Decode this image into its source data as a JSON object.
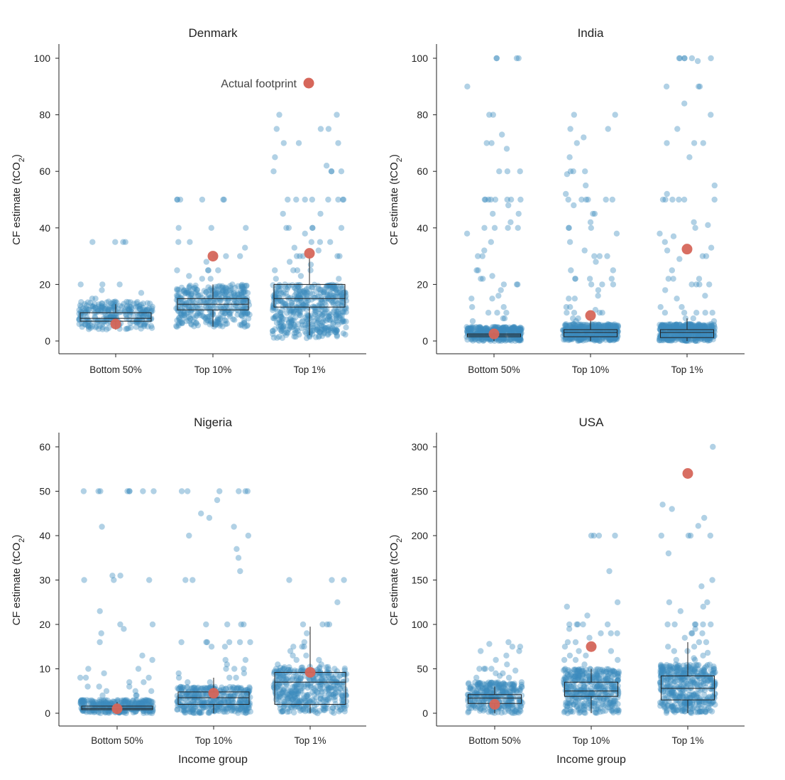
{
  "colors": {
    "point": "#3d8bbd",
    "actual": "#d6665a",
    "box": "#222222",
    "axis": "#222222"
  },
  "legend": {
    "label": "Actual footprint"
  },
  "chart_data": [
    {
      "type": "box-strip",
      "title": "Denmark",
      "ylabel_main": "CF estimate (tCO",
      "ylabel_sub": "2",
      "ylabel_close": ")",
      "xlabel": "",
      "ylim": [
        0,
        100
      ],
      "yticks": [
        0,
        20,
        40,
        60,
        80,
        100
      ],
      "categories": [
        "Bottom 50%",
        "Top 10%",
        "Top 1%"
      ],
      "actual": [
        6,
        30,
        31
      ],
      "box": [
        {
          "q1": 7,
          "median": 8,
          "q3": 10,
          "whisker_low": 4,
          "whisker_high": 13
        },
        {
          "q1": 11,
          "median": 13,
          "q3": 15,
          "whisker_low": 5,
          "whisker_high": 20
        },
        {
          "q1": 12,
          "median": 15,
          "q3": 20,
          "whisker_low": 2,
          "whisker_high": 30
        }
      ],
      "strip": [
        {
          "n": 260,
          "main_low": 4,
          "main_high": 14,
          "outliers": [
            35,
            35,
            35,
            35,
            20,
            20,
            20,
            18,
            17,
            15,
            15
          ]
        },
        {
          "n": 360,
          "main_low": 5,
          "main_high": 20,
          "outliers": [
            50,
            50,
            50,
            50,
            50,
            50,
            40,
            40,
            40,
            35,
            35,
            33,
            30,
            30,
            30,
            28,
            25,
            25,
            25,
            25,
            23,
            22,
            22
          ]
        },
        {
          "n": 460,
          "main_low": 1,
          "main_high": 20,
          "outliers": [
            80,
            80,
            75,
            75,
            75,
            70,
            70,
            70,
            65,
            62,
            60,
            60,
            60,
            60,
            50,
            50,
            50,
            50,
            50,
            50,
            50,
            50,
            45,
            45,
            40,
            40,
            40,
            40,
            40,
            38,
            35,
            35,
            35,
            33,
            32,
            30,
            30,
            30,
            30,
            30,
            28,
            27,
            25,
            25,
            25,
            25,
            23,
            22,
            22
          ]
        }
      ]
    },
    {
      "type": "box-strip",
      "title": "India",
      "ylabel_main": "CF estimate (tCO",
      "ylabel_sub": "2",
      "ylabel_close": ")",
      "xlabel": "",
      "ylim": [
        0,
        100
      ],
      "yticks": [
        0,
        20,
        40,
        60,
        80,
        100
      ],
      "categories": [
        "Bottom 50%",
        "Top 10%",
        "Top 1%"
      ],
      "actual": [
        2.5,
        9,
        32.5
      ],
      "box": [
        {
          "q1": 1.5,
          "median": 2,
          "q3": 2.5,
          "whisker_low": 0,
          "whisker_high": 3
        },
        {
          "q1": 1.5,
          "median": 3,
          "q3": 4,
          "whisker_low": 0,
          "whisker_high": 8
        },
        {
          "q1": 1.2,
          "median": 3,
          "q3": 4,
          "whisker_low": 0,
          "whisker_high": 8
        }
      ],
      "strip": [
        {
          "n": 360,
          "main_low": 0,
          "main_high": 5,
          "outliers": [
            100,
            100,
            100,
            100,
            90,
            80,
            80,
            73,
            70,
            70,
            68,
            60,
            60,
            60,
            50,
            50,
            50,
            50,
            50,
            50,
            50,
            50,
            48,
            45,
            45,
            42,
            40,
            40,
            40,
            40,
            38,
            35,
            32,
            30,
            30,
            25,
            25,
            23,
            22,
            22,
            20,
            20,
            20,
            18,
            16,
            15,
            15,
            12,
            12,
            10,
            10,
            10,
            8,
            8,
            7
          ]
        },
        {
          "n": 400,
          "main_low": 0,
          "main_high": 6,
          "outliers": [
            80,
            80,
            75,
            75,
            72,
            70,
            65,
            60,
            60,
            60,
            59,
            55,
            52,
            50,
            50,
            50,
            50,
            50,
            50,
            48,
            45,
            45,
            42,
            40,
            40,
            40,
            38,
            35,
            32,
            30,
            30,
            30,
            28,
            25,
            25,
            22,
            22,
            22,
            22,
            20,
            20,
            20,
            18,
            16,
            15,
            15,
            12,
            12,
            11,
            10,
            10,
            10,
            10,
            8,
            8,
            7
          ]
        },
        {
          "n": 420,
          "main_low": 0,
          "main_high": 6,
          "outliers": [
            100,
            100,
            100,
            100,
            100,
            100,
            99,
            90,
            90,
            90,
            84,
            80,
            75,
            70,
            70,
            70,
            65,
            55,
            52,
            50,
            50,
            50,
            50,
            50,
            50,
            42,
            41,
            40,
            38,
            37,
            35,
            33,
            32,
            30,
            30,
            29,
            25,
            22,
            22,
            22,
            20,
            20,
            20,
            20,
            18,
            16,
            15,
            12,
            12,
            10,
            10,
            10,
            10,
            10,
            8,
            8,
            7
          ]
        }
      ]
    },
    {
      "type": "box-strip",
      "title": "Nigeria",
      "ylabel_main": "CF estimate (tCO",
      "ylabel_sub": "2",
      "ylabel_close": ")",
      "xlabel": "Income group",
      "ylim": [
        0,
        60
      ],
      "yticks": [
        0,
        10,
        20,
        30,
        40,
        50,
        60
      ],
      "categories": [
        "Bottom 50%",
        "Top 10%",
        "Top 1%"
      ],
      "actual": [
        1,
        4.5,
        9.2
      ],
      "box": [
        {
          "q1": 0.8,
          "median": 1.1,
          "q3": 1.6,
          "whisker_low": 0,
          "whisker_high": 2.5
        },
        {
          "q1": 2,
          "median": 3.5,
          "q3": 4.8,
          "whisker_low": 0,
          "whisker_high": 8
        },
        {
          "q1": 2,
          "median": 7,
          "q3": 9.2,
          "whisker_low": 0,
          "whisker_high": 19.5
        }
      ],
      "strip": [
        {
          "n": 300,
          "main_low": 0,
          "main_high": 3,
          "outliers": [
            50,
            50,
            50,
            50,
            50,
            50,
            50,
            50,
            42,
            31,
            31,
            30,
            30,
            30,
            23,
            20,
            20,
            19,
            18,
            16,
            13,
            12,
            10,
            10,
            9,
            8,
            8,
            8,
            7,
            7,
            6,
            6,
            6,
            5,
            5,
            5,
            4,
            4,
            4
          ]
        },
        {
          "n": 360,
          "main_low": 0,
          "main_high": 6,
          "outliers": [
            50,
            50,
            50,
            50,
            50,
            50,
            48,
            45,
            44,
            42,
            40,
            40,
            37,
            35,
            32,
            30,
            30,
            20,
            20,
            20,
            20,
            16,
            16,
            16,
            16,
            16,
            16,
            15,
            15,
            12,
            12,
            11,
            10,
            10,
            10,
            9,
            9,
            8,
            8,
            8,
            7,
            7
          ]
        },
        {
          "n": 400,
          "main_low": 0,
          "main_high": 10.5,
          "outliers": [
            30,
            30,
            30,
            25,
            20,
            20,
            20,
            20,
            18,
            16,
            15,
            15,
            15,
            14,
            13,
            13,
            12,
            12,
            11,
            11
          ]
        }
      ]
    },
    {
      "type": "box-strip",
      "title": "USA",
      "ylabel_main": "CF estimate (tCO",
      "ylabel_sub": "2",
      "ylabel_close": ")",
      "xlabel": "Income group",
      "ylim": [
        0,
        300
      ],
      "yticks": [
        0,
        50,
        100,
        150,
        200,
        250,
        300
      ],
      "categories": [
        "Bottom 50%",
        "Top 10%",
        "Top 1%"
      ],
      "actual": [
        10,
        75,
        270
      ],
      "box": [
        {
          "q1": 11,
          "median": 17,
          "q3": 21,
          "whisker_low": 0,
          "whisker_high": 30
        },
        {
          "q1": 19,
          "median": 25,
          "q3": 35,
          "whisker_low": 0,
          "whisker_high": 50
        },
        {
          "q1": 15,
          "median": 28,
          "q3": 42,
          "whisker_low": 0,
          "whisker_high": 80
        }
      ],
      "strip": [
        {
          "n": 300,
          "main_low": 0,
          "main_high": 35,
          "outliers": [
            80,
            78,
            75,
            75,
            70,
            70,
            65,
            60,
            55,
            50,
            50,
            50,
            50,
            48,
            45,
            45,
            42,
            40,
            40
          ]
        },
        {
          "n": 380,
          "main_low": 0,
          "main_high": 50,
          "outliers": [
            200,
            200,
            200,
            200,
            160,
            125,
            120,
            110,
            100,
            100,
            100,
            100,
            100,
            95,
            90,
            90,
            90,
            85,
            80,
            80,
            75,
            75,
            70,
            70,
            65,
            65,
            60,
            60,
            60,
            55
          ]
        },
        {
          "n": 420,
          "main_low": 0,
          "main_high": 55,
          "outliers": [
            300,
            235,
            230,
            220,
            211,
            200,
            200,
            200,
            200,
            180,
            150,
            143,
            125,
            125,
            120,
            115,
            100,
            100,
            100,
            100,
            100,
            100,
            95,
            90,
            90,
            90,
            85,
            80,
            80,
            75,
            75,
            70,
            70,
            68,
            65,
            62,
            60,
            60
          ]
        }
      ]
    }
  ]
}
